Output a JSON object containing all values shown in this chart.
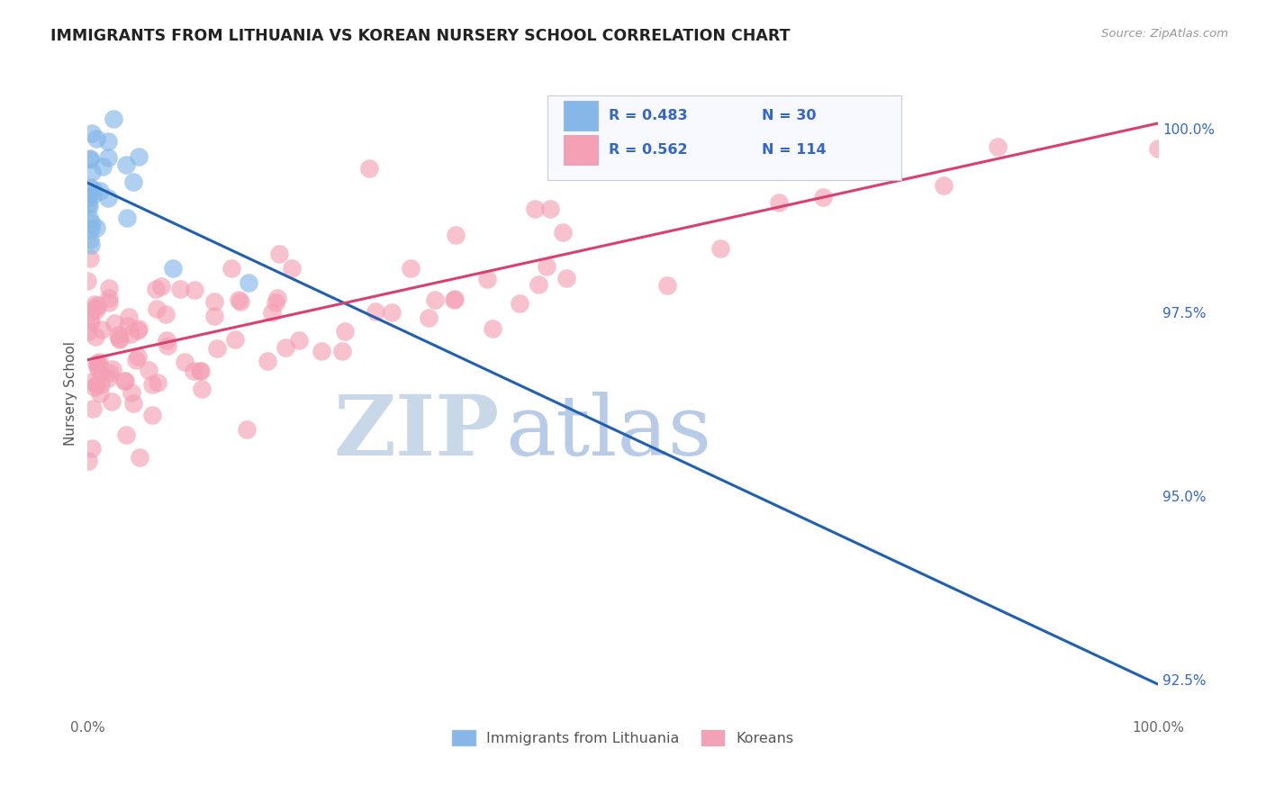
{
  "title": "IMMIGRANTS FROM LITHUANIA VS KOREAN NURSERY SCHOOL CORRELATION CHART",
  "source": "Source: ZipAtlas.com",
  "ylabel": "Nursery School",
  "legend_label1": "Immigrants from Lithuania",
  "legend_label2": "Koreans",
  "blue_R": 0.483,
  "blue_N": 30,
  "pink_R": 0.562,
  "pink_N": 114,
  "blue_color": "#85b8e8",
  "pink_color": "#f4a0b5",
  "blue_line_color": "#2060b0",
  "pink_line_color": "#d94070",
  "right_ytick_labels": [
    "100.0%",
    "97.5%",
    "95.0%",
    "92.5%"
  ],
  "right_ytick_values": [
    100.0,
    97.5,
    95.0,
    92.5
  ],
  "xlim": [
    0.0,
    100.0
  ],
  "ylim": [
    92.0,
    100.8
  ],
  "watermark_zip_color": "#c8d8e8",
  "watermark_atlas_color": "#b8cce8",
  "background_color": "#ffffff",
  "grid_color": "#dddddd",
  "title_color": "#222222",
  "axis_label_color": "#555555",
  "right_axis_color": "#3366cc",
  "legend_border_color": "#cccccc",
  "legend_box_color": "#f8f8ff"
}
